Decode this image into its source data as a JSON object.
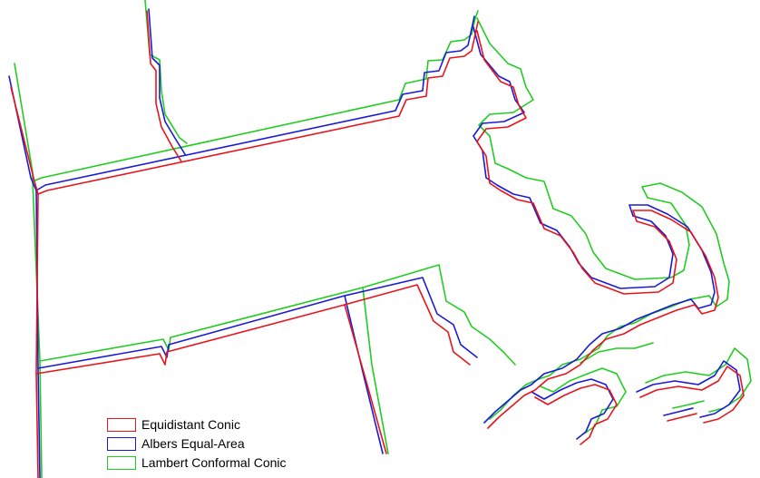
{
  "map": {
    "region": "Massachusetts coastline and borders"
  },
  "legend": {
    "items": [
      {
        "label": "Equidistant Conic",
        "color": "#e8141c"
      },
      {
        "label": "Albers Equal-Area",
        "color": "#1a1ad6"
      },
      {
        "label": "Lambert Conformal Conic",
        "color": "#22cc22"
      }
    ]
  }
}
